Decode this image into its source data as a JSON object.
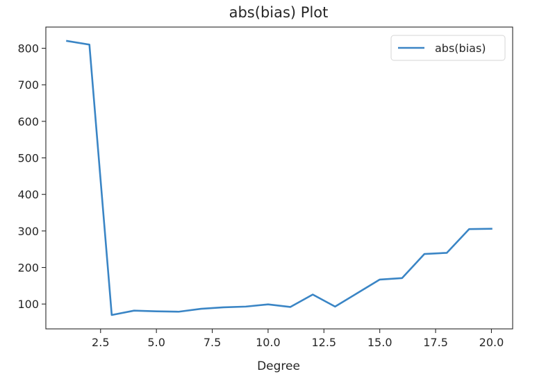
{
  "chart_data": {
    "type": "line",
    "title": "abs(bias) Plot",
    "xlabel": "Degree",
    "ylabel": "",
    "xlim": [
      0.05,
      20.95
    ],
    "ylim": [
      32,
      858
    ],
    "x_ticks": [
      2.5,
      5.0,
      7.5,
      10.0,
      12.5,
      15.0,
      17.5,
      20.0
    ],
    "x_tick_labels": [
      "2.5",
      "5.0",
      "7.5",
      "10.0",
      "12.5",
      "15.0",
      "17.5",
      "20.0"
    ],
    "y_ticks": [
      100,
      200,
      300,
      400,
      500,
      600,
      700,
      800
    ],
    "y_tick_labels": [
      "100",
      "200",
      "300",
      "400",
      "500",
      "600",
      "700",
      "800"
    ],
    "grid": false,
    "legend_position": "top-right",
    "series": [
      {
        "name": "abs(bias)",
        "color": "#3a85c5",
        "x": [
          1,
          2,
          3,
          4,
          5,
          6,
          7,
          8,
          9,
          10,
          11,
          12,
          13,
          14,
          15,
          16,
          17,
          18,
          19,
          20
        ],
        "values": [
          820,
          810,
          70,
          82,
          80,
          79,
          87,
          91,
          93,
          99,
          92,
          126,
          93,
          130,
          167,
          171,
          237,
          240,
          305,
          306
        ]
      }
    ]
  }
}
